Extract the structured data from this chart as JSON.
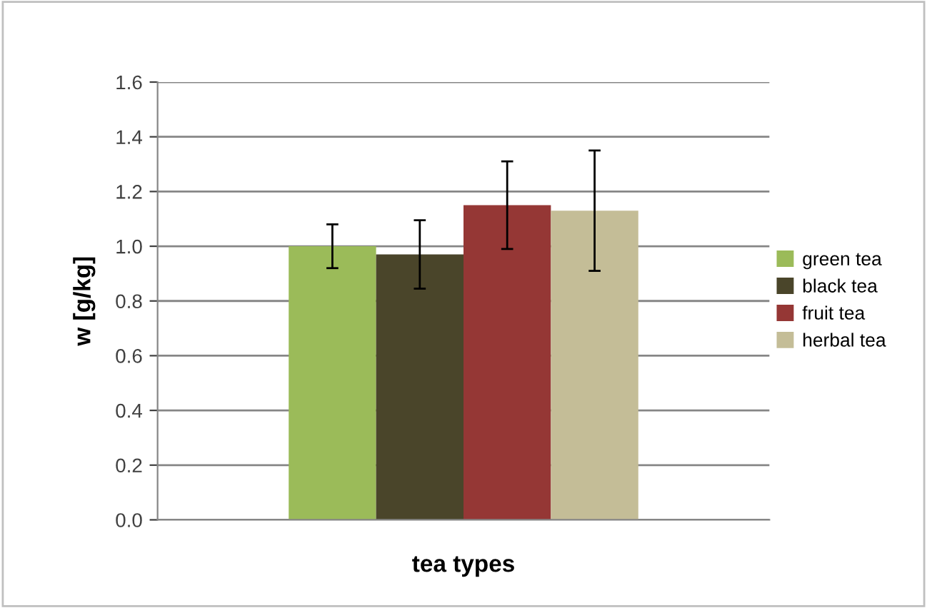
{
  "chart_data": {
    "type": "bar",
    "xlabel": "tea types",
    "ylabel": "w [g/kg]",
    "categories": [
      null
    ],
    "series": [
      {
        "name": "green tea",
        "color": "#9bbb59",
        "values": [
          1.0
        ],
        "errors": [
          0.08
        ]
      },
      {
        "name": "black tea",
        "color": "#4a452a",
        "values": [
          0.97
        ],
        "errors": [
          0.125
        ]
      },
      {
        "name": "fruit tea",
        "color": "#953735",
        "values": [
          1.15
        ],
        "errors": [
          0.16
        ]
      },
      {
        "name": "herbal tea",
        "color": "#c4bd97",
        "values": [
          1.13
        ],
        "errors": [
          0.22
        ]
      }
    ],
    "ylim": [
      0,
      1.6
    ],
    "yticks": [
      {
        "value": 0,
        "label": "0.0"
      },
      {
        "value": 0.2,
        "label": "0.2"
      },
      {
        "value": 0.4,
        "label": "0.4"
      },
      {
        "value": 0.6,
        "label": "0.6"
      },
      {
        "value": 0.8,
        "label": "0.8"
      },
      {
        "value": 1.0,
        "label": "1.0"
      },
      {
        "value": 1.2,
        "label": "1.2"
      },
      {
        "value": 1.4,
        "label": "1.4"
      },
      {
        "value": 1.6,
        "label": "1.6"
      }
    ],
    "grid": "y",
    "legend": "right"
  }
}
